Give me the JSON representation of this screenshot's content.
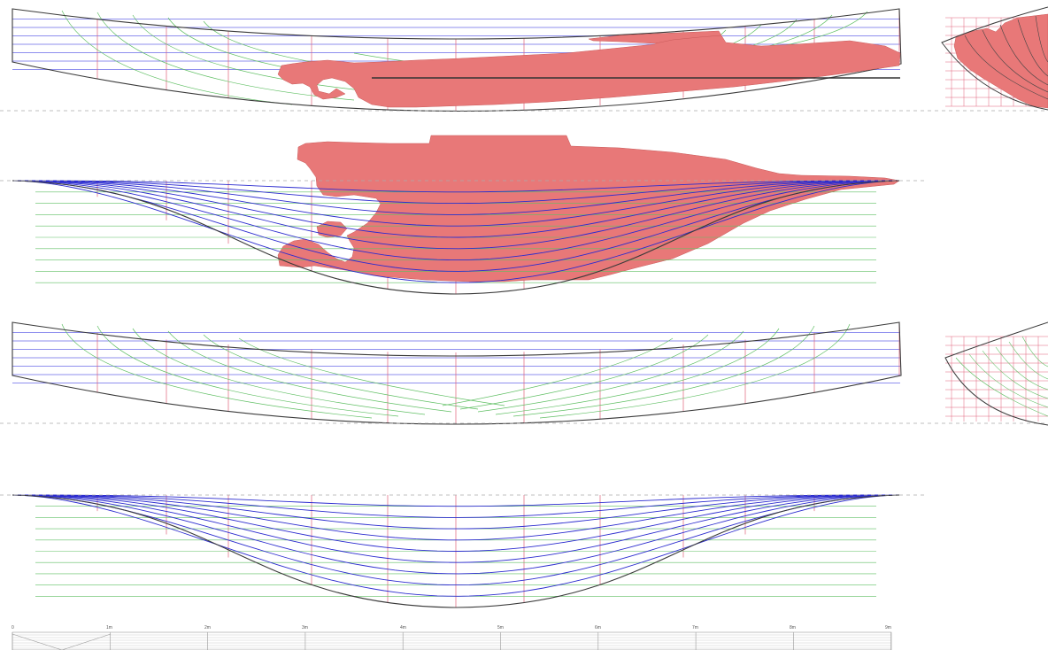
{
  "drawing": {
    "colors": {
      "background": "#ffffff",
      "hull_outline": "#3a3a3a",
      "station_line": "#e0607a",
      "buttock_line": "#7b7bf0",
      "waterline": "#6a6ae8",
      "diagonal": "#5fbf63",
      "plan_line": "#2c2ccf",
      "preserved_wreck": "#e87878",
      "datum_line": "#aaaaaa",
      "scale_bar": "#888888"
    },
    "views": [
      {
        "id": "profile-with-wreck",
        "kind": "profile",
        "overlay": "wreck"
      },
      {
        "id": "plan-with-wreck",
        "kind": "half-breadth-plan",
        "overlay": "wreck"
      },
      {
        "id": "profile-reconstruction",
        "kind": "profile",
        "overlay": "none"
      },
      {
        "id": "plan-reconstruction",
        "kind": "half-breadth-plan",
        "overlay": "none"
      },
      {
        "id": "body-plan-with-wreck",
        "kind": "body-plan",
        "overlay": "wreck"
      },
      {
        "id": "body-plan-reconstruction",
        "kind": "body-plan",
        "overlay": "none"
      }
    ],
    "scale_bar": {
      "labels": [
        "0",
        "1m",
        "2m",
        "3m",
        "4m",
        "5m",
        "6m",
        "7m",
        "8m",
        "9m"
      ]
    }
  }
}
